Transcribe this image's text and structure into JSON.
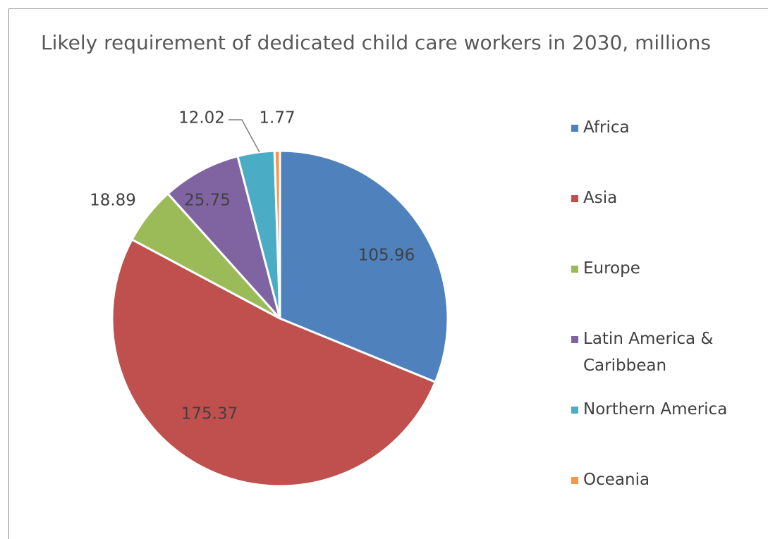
{
  "chart_data": {
    "type": "pie",
    "title": "Likely requirement of dedicated child care workers in 2030, millions",
    "categories": [
      "Africa",
      "Asia",
      "Europe",
      "Latin America & Caribbean",
      "Northern America",
      "Oceania"
    ],
    "values": [
      105.96,
      175.37,
      18.89,
      25.75,
      12.02,
      1.77
    ],
    "data_labels": [
      "105.96",
      "175.37",
      "18.89",
      "25.75",
      "12.02",
      "1.77"
    ],
    "colors": [
      "#4f81bd",
      "#c0504d",
      "#9bbb59",
      "#8064a2",
      "#4bacc6",
      "#f79646"
    ],
    "legend_position": "right",
    "start_angle": "12 o'clock",
    "direction": "clockwise"
  }
}
